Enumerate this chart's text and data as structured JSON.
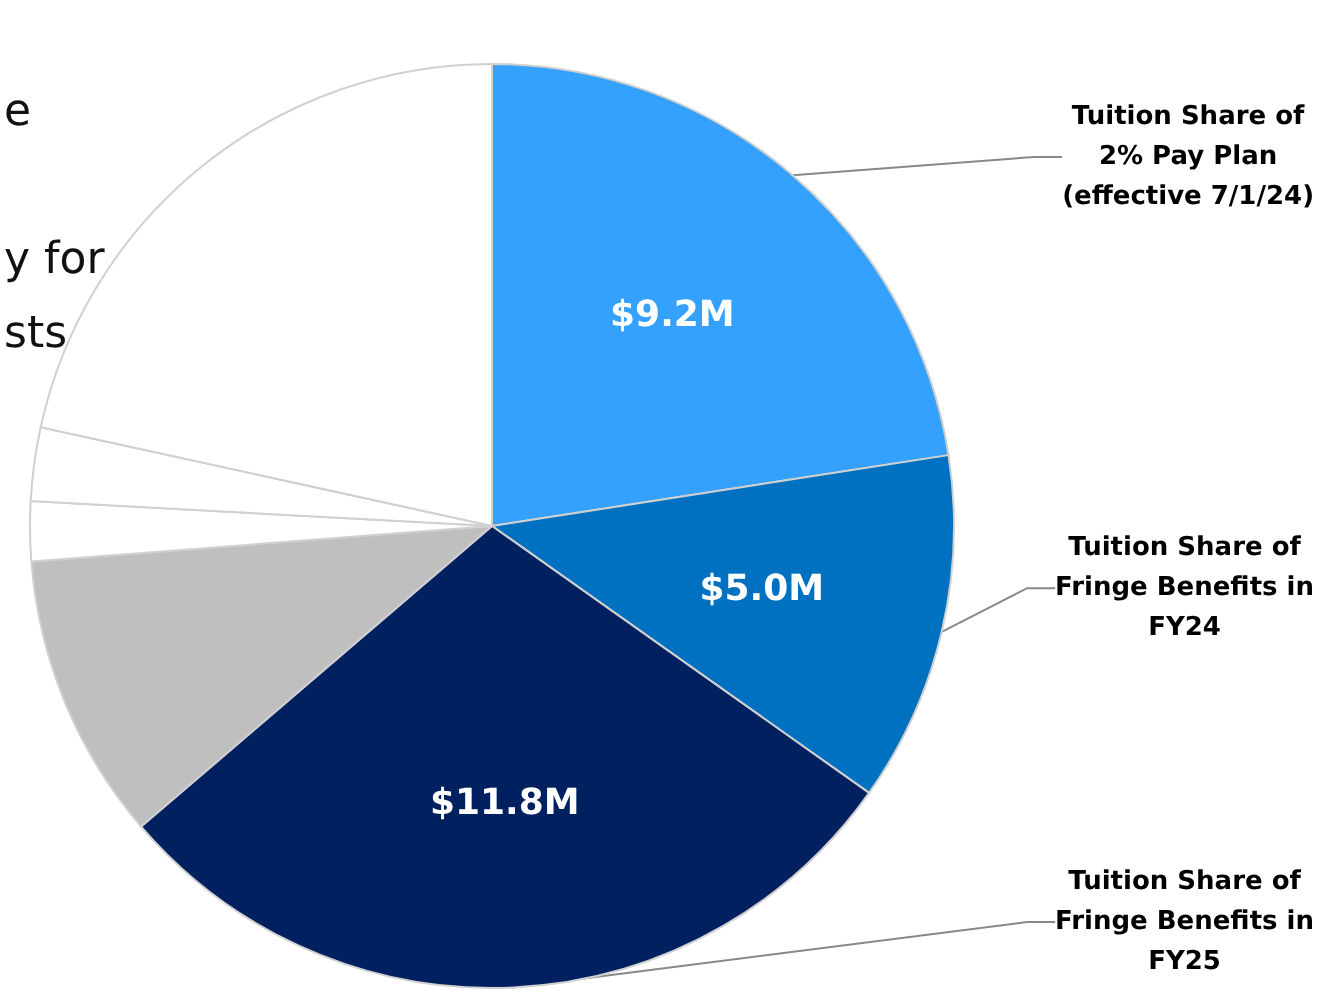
{
  "chart_data": {
    "type": "pie",
    "categories": [
      "Tuition Share of 2% Pay Plan (effective 7/1/24)",
      "Tuition Share of Fringe Benefits in FY24",
      "Tuition Share of Fringe Benefits in FY25",
      null,
      null,
      null,
      null
    ],
    "values": [
      9.2,
      5.0,
      11.8,
      4.1,
      0.85,
      1.05,
      8.8
    ],
    "colors": [
      "#33a1fd",
      "#0070c0",
      "#002060",
      "#bfbfbf",
      "#ffffff",
      "#ffffff",
      "#ffffff"
    ],
    "value_labels": [
      "$9.2M",
      "$5.0M",
      "$11.8M",
      null,
      null,
      null,
      null
    ],
    "annotations": [
      "e",
      "y for",
      "sts"
    ]
  }
}
